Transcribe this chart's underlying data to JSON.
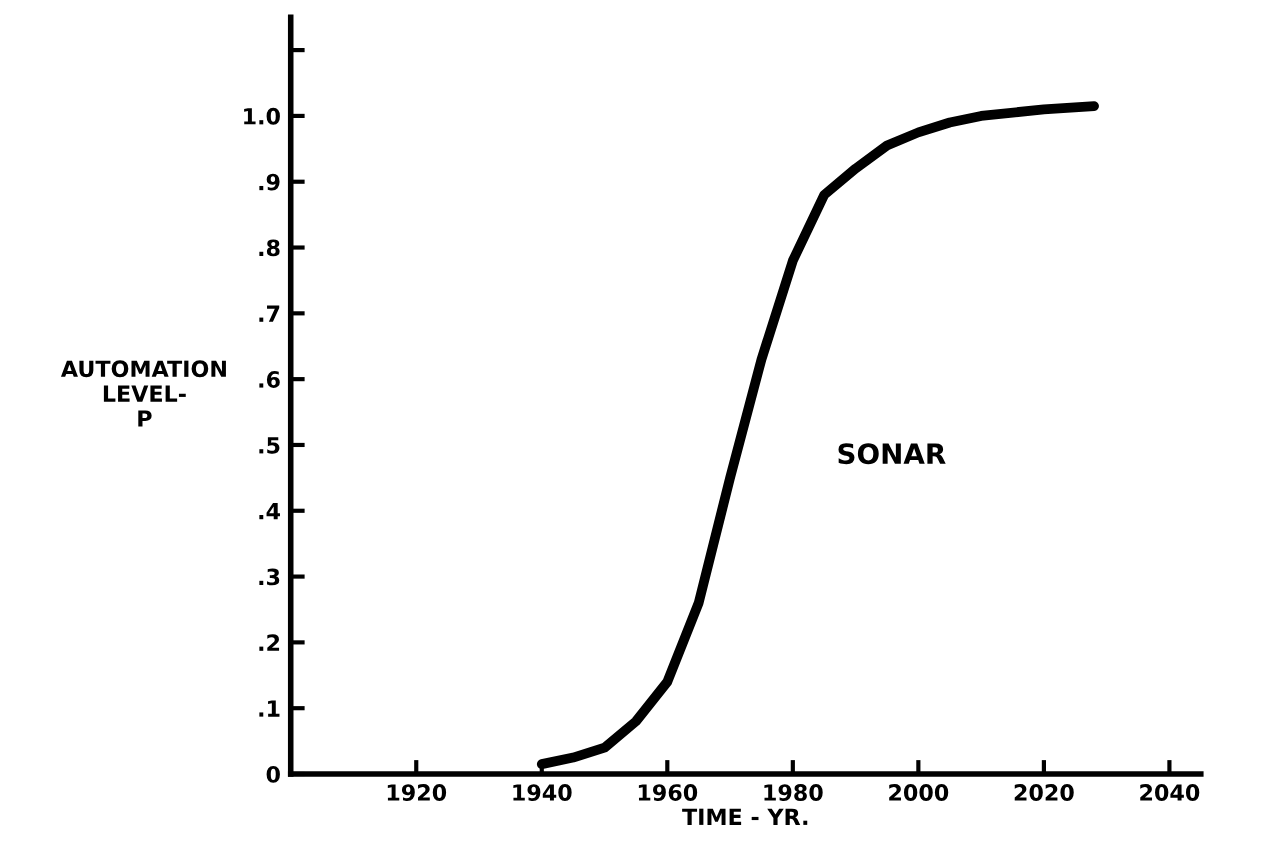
{
  "chart_data": {
    "type": "line",
    "xlabel": "TIME - YR.",
    "ylabel": "AUTOMATION\nLEVEL-\nP",
    "series": [
      {
        "name": "SONAR",
        "color": "#000000",
        "x": [
          1940,
          1945,
          1950,
          1955,
          1960,
          1965,
          1970,
          1975,
          1980,
          1985,
          1990,
          1995,
          2000,
          2005,
          2010,
          2020,
          2028
        ],
        "values": [
          0.015,
          0.025,
          0.04,
          0.08,
          0.14,
          0.26,
          0.45,
          0.63,
          0.78,
          0.88,
          0.92,
          0.955,
          0.975,
          0.99,
          1.0,
          1.01,
          1.015
        ]
      }
    ],
    "xlim": [
      1900,
      2045
    ],
    "xticks": [
      1920,
      1940,
      1960,
      1980,
      2000,
      2020,
      2040
    ],
    "ylim": [
      0,
      1.15
    ],
    "yticks": [
      0,
      {
        "value": 0.1,
        "label": ".1"
      },
      {
        "value": 0.2,
        "label": ".2"
      },
      {
        "value": 0.3,
        "label": ".3"
      },
      {
        "value": 0.4,
        "label": ".4"
      },
      {
        "value": 0.5,
        "label": ".5"
      },
      {
        "value": 0.6,
        "label": ".6"
      },
      {
        "value": 0.7,
        "label": ".7"
      },
      {
        "value": 0.8,
        "label": ".8"
      },
      {
        "value": 0.9,
        "label": ".9"
      },
      {
        "value": 1.0,
        "label": "1.0"
      },
      {
        "value": 1.1,
        "label": null
      }
    ],
    "grid": false,
    "legend": false,
    "marker": "none",
    "line_style": "solid"
  }
}
